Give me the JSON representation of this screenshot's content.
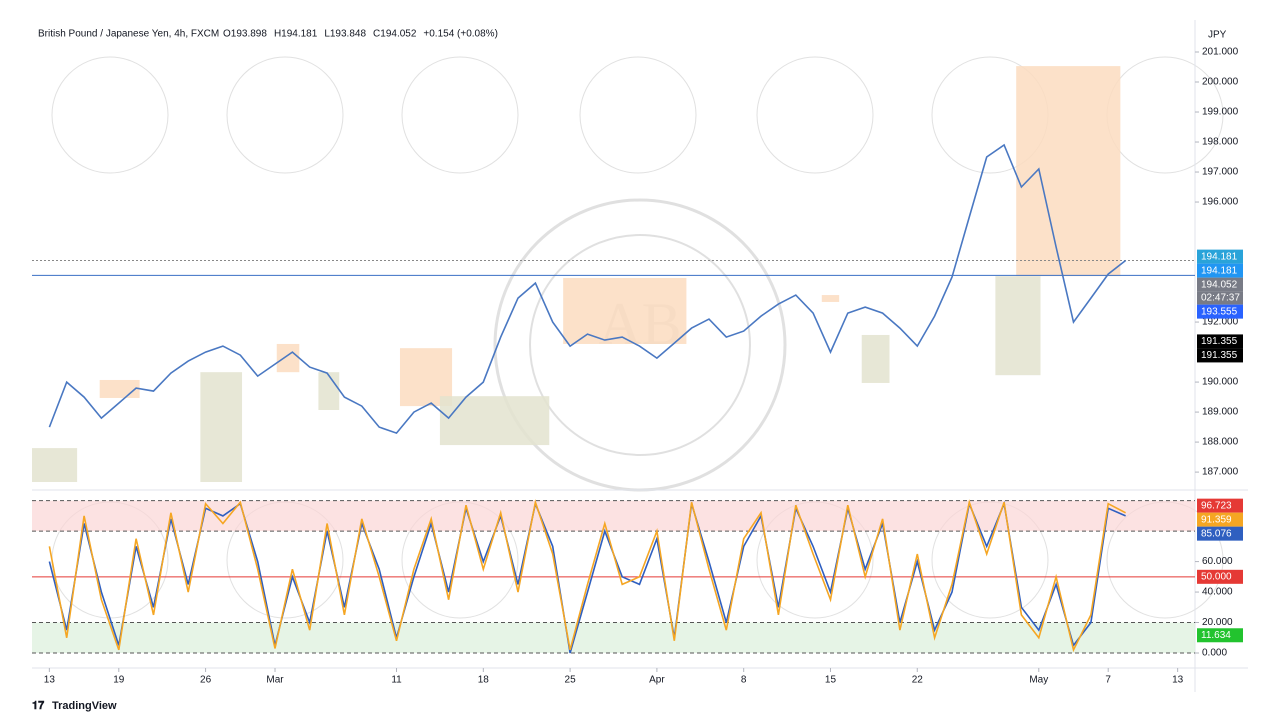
{
  "header": {
    "symbol": "British Pound / Japanese Yen, 4h, FXCM",
    "ohlc": [
      "O193.898",
      "H194.181",
      "L193.848",
      "C194.052",
      "+0.154 (+0.08%)"
    ],
    "currency": "JPY"
  },
  "watermark": "AB",
  "footer": "TradingView",
  "chart_data": [
    {
      "type": "line",
      "x": [
        0,
        1,
        2,
        3,
        4,
        5,
        6,
        7,
        8,
        9,
        10,
        11,
        12,
        13,
        14,
        15,
        16,
        17,
        18,
        19,
        20,
        21,
        22,
        23,
        24,
        25,
        26,
        27,
        28,
        29,
        30,
        31,
        32,
        33,
        34,
        35,
        36,
        37,
        38,
        39,
        40,
        41,
        42,
        43,
        44,
        45,
        46,
        47,
        48,
        49,
        50,
        51,
        52,
        53,
        54,
        55,
        56,
        57,
        58,
        59,
        60,
        61,
        62
      ],
      "series": [
        {
          "name": "GBPJPY",
          "color": "#4a78c2",
          "values": [
            188.5,
            190.0,
            189.5,
            188.8,
            189.3,
            189.8,
            189.7,
            190.3,
            190.7,
            191.0,
            191.2,
            190.9,
            190.2,
            190.6,
            191.0,
            190.5,
            190.3,
            189.5,
            189.2,
            188.5,
            188.3,
            189.0,
            189.3,
            188.8,
            189.5,
            190.0,
            191.5,
            192.8,
            193.3,
            192.0,
            191.2,
            191.6,
            191.4,
            191.5,
            191.2,
            190.8,
            191.3,
            191.8,
            192.1,
            191.5,
            191.7,
            192.2,
            192.6,
            192.9,
            192.3,
            191.0,
            192.3,
            192.5,
            192.3,
            191.8,
            191.2,
            192.2,
            193.5,
            195.5,
            197.5,
            197.9,
            196.5,
            197.1,
            194.5,
            192.0,
            192.8,
            193.6,
            194.052
          ]
        }
      ],
      "xlim": [
        -1,
        66
      ],
      "ylim": [
        186.67,
        201.8
      ],
      "yticks": [
        {
          "value": 187,
          "label": "187.000"
        },
        {
          "value": 188,
          "label": "188.000"
        },
        {
          "value": 189,
          "label": "189.000"
        },
        {
          "value": 190,
          "label": "190.000"
        },
        {
          "value": 192,
          "label": "192.000"
        },
        {
          "value": 196,
          "label": "196.000"
        },
        {
          "value": 197,
          "label": "197.000"
        },
        {
          "value": 198,
          "label": "198.000"
        },
        {
          "value": 199,
          "label": "199.000"
        },
        {
          "value": 200,
          "label": "200.000"
        },
        {
          "value": 201,
          "label": "201.000"
        }
      ],
      "zones": [
        {
          "x": [
            2.9,
            5.2
          ],
          "y": [
            190.07,
            189.47
          ],
          "color": "#fcdcc0"
        },
        {
          "x": [
            -1,
            1.6
          ],
          "y": [
            187.8,
            186.67
          ],
          "color": "#e3e3cf"
        },
        {
          "x": [
            8.7,
            11.1
          ],
          "y": [
            190.33,
            186.67
          ],
          "color": "#e3e3cf"
        },
        {
          "x": [
            13.1,
            14.4
          ],
          "y": [
            191.27,
            190.33
          ],
          "color": "#fcdcc0"
        },
        {
          "x": [
            15.5,
            16.7
          ],
          "y": [
            190.33,
            189.07
          ],
          "color": "#e3e3cf"
        },
        {
          "x": [
            20.2,
            23.2
          ],
          "y": [
            191.13,
            189.2
          ],
          "color": "#fcdcc0"
        },
        {
          "x": [
            22.5,
            28.8
          ],
          "y": [
            189.53,
            187.9
          ],
          "color": "#e3e3cf"
        },
        {
          "x": [
            29.6,
            36.7
          ],
          "y": [
            193.47,
            191.27
          ],
          "color": "#fcdcc0"
        },
        {
          "x": [
            44.5,
            45.5
          ],
          "y": [
            192.9,
            192.67
          ],
          "color": "#fcdcc0"
        },
        {
          "x": [
            46.8,
            48.4
          ],
          "y": [
            191.57,
            189.97
          ],
          "color": "#e3e3cf"
        },
        {
          "x": [
            54.5,
            57.1
          ],
          "y": [
            193.53,
            190.23
          ],
          "color": "#e3e3cf"
        },
        {
          "x": [
            55.7,
            61.7
          ],
          "y": [
            200.53,
            193.53
          ],
          "color": "#fcdcc0"
        }
      ],
      "hlines": [
        {
          "value": 193.555,
          "color": "#3a6fc4",
          "style": "solid"
        },
        {
          "value": 194.052,
          "color": "#888888",
          "style": "dotted"
        }
      ],
      "price_labels": [
        {
          "value": 194.181,
          "label": "194.181",
          "color": "#29a3d9"
        },
        {
          "value": 194.181,
          "label": "194.181",
          "color": "#2196f3"
        },
        {
          "value": 194.052,
          "label": "194.052",
          "color": "#787b86",
          "countdown": "02:47:37"
        },
        {
          "value": 193.555,
          "label": "193.555",
          "color": "#2962ff"
        },
        {
          "value": 191.355,
          "label": "191.355",
          "color": "#000000"
        },
        {
          "value": 191.355,
          "label": "191.355",
          "color": "#000000"
        }
      ]
    },
    {
      "type": "line",
      "x": [
        0,
        1,
        2,
        3,
        4,
        5,
        6,
        7,
        8,
        9,
        10,
        11,
        12,
        13,
        14,
        15,
        16,
        17,
        18,
        19,
        20,
        21,
        22,
        23,
        24,
        25,
        26,
        27,
        28,
        29,
        30,
        31,
        32,
        33,
        34,
        35,
        36,
        37,
        38,
        39,
        40,
        41,
        42,
        43,
        44,
        45,
        46,
        47,
        48,
        49,
        50,
        51,
        52,
        53,
        54,
        55,
        56,
        57,
        58,
        59,
        60,
        61,
        62
      ],
      "series": [
        {
          "name": "%K",
          "color": "#2f5fc0",
          "values": [
            60,
            15,
            85,
            40,
            5,
            70,
            30,
            88,
            45,
            95,
            90,
            98,
            60,
            5,
            50,
            20,
            80,
            30,
            85,
            55,
            10,
            50,
            85,
            40,
            95,
            60,
            90,
            45,
            98,
            70,
            0,
            40,
            80,
            50,
            45,
            75,
            10,
            98,
            60,
            20,
            70,
            90,
            30,
            95,
            70,
            40,
            95,
            55,
            85,
            20,
            60,
            15,
            40,
            98,
            70,
            98,
            30,
            15,
            45,
            5,
            20,
            95,
            90
          ]
        },
        {
          "name": "%D",
          "color": "#f5a623",
          "values": [
            70,
            10,
            90,
            35,
            2,
            75,
            25,
            92,
            40,
            98,
            85,
            99,
            55,
            3,
            55,
            15,
            85,
            25,
            88,
            50,
            8,
            55,
            88,
            35,
            97,
            55,
            92,
            40,
            99,
            65,
            2,
            45,
            85,
            45,
            50,
            80,
            8,
            99,
            55,
            15,
            75,
            92,
            25,
            97,
            65,
            35,
            97,
            50,
            88,
            15,
            65,
            10,
            45,
            99,
            65,
            99,
            25,
            10,
            50,
            2,
            25,
            98,
            92
          ]
        }
      ],
      "xlim": [
        -1,
        66
      ],
      "ylim": [
        -4.6,
        102.4
      ],
      "xticks": [
        {
          "value": 0,
          "label": "13"
        },
        {
          "value": 4,
          "label": "19"
        },
        {
          "value": 9,
          "label": "26"
        },
        {
          "value": 13,
          "label": "Mar"
        },
        {
          "value": 20,
          "label": "11"
        },
        {
          "value": 25,
          "label": "18"
        },
        {
          "value": 30,
          "label": "25"
        },
        {
          "value": 35,
          "label": "Apr"
        },
        {
          "value": 40,
          "label": "8"
        },
        {
          "value": 45,
          "label": "15"
        },
        {
          "value": 50,
          "label": "22"
        },
        {
          "value": 57,
          "label": "May"
        },
        {
          "value": 61,
          "label": "7"
        },
        {
          "value": 65,
          "label": "13"
        }
      ],
      "yticks": [
        {
          "value": 0,
          "label": "0.000"
        },
        {
          "value": 20,
          "label": "20.000"
        },
        {
          "value": 40,
          "label": "40.000"
        },
        {
          "value": 60,
          "label": "60.000"
        }
      ],
      "bands": [
        {
          "range": [
            80,
            100
          ],
          "color": "#fbd5d5"
        },
        {
          "range": [
            0,
            20
          ],
          "color": "#dcefdc"
        }
      ],
      "hlines": [
        {
          "value": 50,
          "color": "#e53935",
          "style": "solid"
        }
      ],
      "price_labels": [
        {
          "value": 96.723,
          "label": "96.723",
          "color": "#e53935"
        },
        {
          "value": 91.359,
          "label": "91.359",
          "color": "#f5a623"
        },
        {
          "value": 85.076,
          "label": "85.076",
          "color": "#2f5fc0"
        },
        {
          "value": 50,
          "label": "50.000",
          "color": "#e53935"
        },
        {
          "value": 11.634,
          "label": "11.634",
          "color": "#22c32e"
        }
      ]
    }
  ]
}
